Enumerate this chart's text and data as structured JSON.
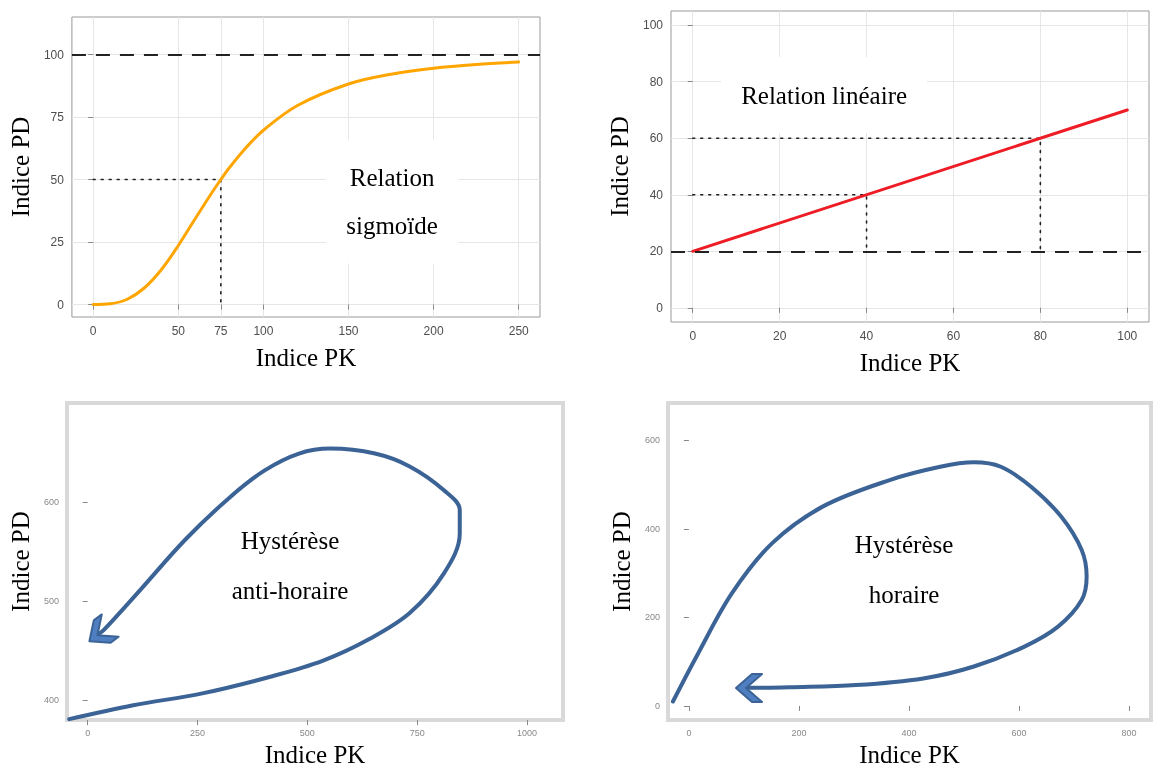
{
  "chart_data": [
    {
      "type": "line",
      "xlabel": "Indice PK",
      "ylabel": "Indice PD",
      "annotations": [
        "Relation\nsigmoïde"
      ],
      "xlim": [
        -12.5,
        262.5
      ],
      "ylim": [
        -5,
        115
      ],
      "xticks": [
        0,
        50,
        75,
        100,
        150,
        200,
        250
      ],
      "yticks": [
        0,
        25,
        50,
        75,
        100
      ],
      "grid": true,
      "series": [
        {
          "color": "#ffa500",
          "x": [
            0,
            10,
            20,
            30,
            40,
            50,
            60,
            70,
            75,
            80,
            90,
            100,
            120,
            150,
            175,
            200,
            225,
            250
          ],
          "values": [
            0,
            0.3,
            2.1,
            6.6,
            13.9,
            23.6,
            34.4,
            45,
            50,
            54.7,
            62.9,
            69.7,
            79.6,
            88.2,
            92.1,
            94.5,
            96,
            97
          ]
        },
        {
          "color": "#222222",
          "line_style": "dotted",
          "x": [
            0,
            75,
            75
          ],
          "values": [
            50,
            50,
            0
          ]
        }
      ],
      "ref_lines": [
        {
          "axis": "y",
          "value": 100,
          "color": "#222222",
          "line_style": "dashed"
        }
      ]
    },
    {
      "type": "line",
      "xlabel": "Indice PK",
      "ylabel": "Indice PD",
      "annotations": [
        "Relation linéaire"
      ],
      "xlim": [
        -5,
        105
      ],
      "ylim": [
        -5,
        105
      ],
      "xticks": [
        0,
        20,
        40,
        60,
        80,
        100
      ],
      "yticks": [
        0,
        20,
        40,
        60,
        80,
        100
      ],
      "grid": true,
      "series": [
        {
          "color": "#ee1c25",
          "x": [
            0,
            100
          ],
          "values": [
            20,
            70
          ]
        },
        {
          "color": "#222222",
          "line_style": "dotted",
          "x": [
            0,
            80,
            80
          ],
          "values": [
            60,
            60,
            20
          ]
        },
        {
          "color": "#222222",
          "line_style": "dotted",
          "x": [
            0,
            40,
            40
          ],
          "values": [
            40,
            40,
            20
          ]
        }
      ],
      "ref_lines": [
        {
          "axis": "y",
          "value": 20,
          "color": "#222222",
          "line_style": "dashed"
        }
      ]
    },
    {
      "type": "line",
      "xlabel": "Indice PK",
      "ylabel": "Indice PD",
      "annotations": [
        "Hystérèse\nanti-horaire"
      ],
      "xlim": [
        -47,
        1082
      ],
      "ylim": [
        380,
        700
      ],
      "xticks": [
        0,
        250,
        500,
        750,
        1000
      ],
      "yticks": [
        400,
        500,
        600
      ],
      "grid": false,
      "series": [
        {
          "color": "#3b6396",
          "x": [
            -42,
            104,
            261,
            418,
            536,
            638,
            733,
            811,
            847,
            847,
            811,
            733,
            654,
            552,
            481,
            403,
            324,
            222,
            119,
            37,
            25
          ],
          "values": [
            381,
            395,
            407,
            424,
            440,
            461,
            488,
            528,
            568,
            592,
            612,
            636,
            649,
            654,
            649,
            632,
            605,
            562,
            511,
            471,
            467
          ]
        }
      ]
    },
    {
      "type": "line",
      "xlabel": "Indice PK",
      "ylabel": "Indice PD",
      "annotations": [
        "Hystérèse\nhoraire"
      ],
      "xlim": [
        -38,
        840
      ],
      "ylim": [
        -32,
        684
      ],
      "xticks": [
        0,
        200,
        400,
        600,
        800
      ],
      "yticks": [
        0,
        200,
        400,
        600
      ],
      "grid": false,
      "series": [
        {
          "color": "#3b6396",
          "x": [
            -29,
            17,
            78,
            151,
            243,
            365,
            457,
            518,
            567,
            622,
            677,
            714,
            723,
            714,
            671,
            610,
            518,
            426,
            304,
            182,
            139,
            108
          ],
          "values": [
            10,
            119,
            254,
            367,
            450,
            510,
            540,
            550,
            540,
            495,
            427,
            352,
            292,
            239,
            179,
            134,
            89,
            62,
            47,
            42,
            41,
            41
          ]
        }
      ]
    }
  ]
}
